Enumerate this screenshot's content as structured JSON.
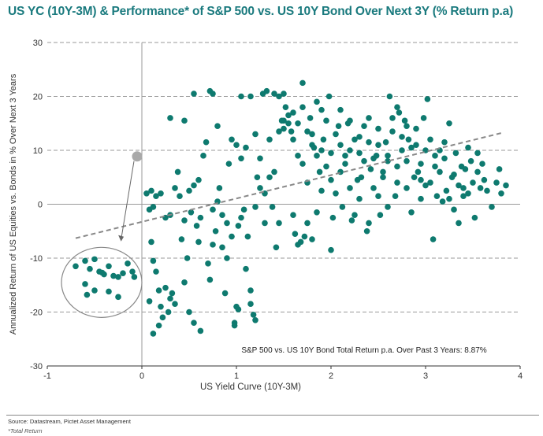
{
  "title": "US YC (10Y-3M) & Performance* of S&P 500 vs. US 10Y Bond Over Next 3Y (% Return p.a)",
  "source": "Source: Datastream, Pictet Asset Management",
  "footnote": "*Total Return",
  "colors": {
    "title": "#1a7a7e",
    "points": "#0e7a6f",
    "grid": "#9a9a9a",
    "highlight": "#a9a9a9",
    "trend": "#888888"
  },
  "chart_data": {
    "type": "scatter",
    "title": "US YC (10Y-3M) & Performance* of S&P 500 vs. US 10Y Bond Over Next 3Y (% Return p.a)",
    "xlabel": "US Yield Curve (10Y-3M)",
    "ylabel": "Annualized Return of US Equities vs. Bonds in % Over Next 3 Years",
    "xlim": [
      -1,
      4
    ],
    "ylim": [
      -30,
      30
    ],
    "xticks": [
      -1,
      0,
      1,
      2,
      3,
      4
    ],
    "yticks": [
      -30,
      -20,
      -10,
      0,
      10,
      20,
      30
    ],
    "grid": "horizontal dashed",
    "annotation": "S&P 500 vs. US 10Y Bond Total Return p.a. Over Past 3 Years: 8.87%",
    "highlight_point": {
      "x": -0.05,
      "y": 8.87
    },
    "trendline": {
      "x": [
        -0.7,
        3.8
      ],
      "y": [
        -6.3,
        13.2
      ]
    },
    "circled_region": {
      "x": [
        -0.85,
        0.0
      ],
      "y": [
        -21,
        -8
      ]
    },
    "series": [
      {
        "name": "Observations",
        "points": [
          [
            -0.7,
            -11.5
          ],
          [
            -0.6,
            -10.5
          ],
          [
            -0.55,
            -12.0
          ],
          [
            -0.6,
            -14.8
          ],
          [
            -0.5,
            -10.2
          ],
          [
            -0.45,
            -12.5
          ],
          [
            -0.4,
            -13.0
          ],
          [
            -0.35,
            -11.5
          ],
          [
            -0.3,
            -13.3
          ],
          [
            -0.25,
            -13.5
          ],
          [
            -0.2,
            -12.8
          ],
          [
            -0.15,
            -11.0
          ],
          [
            -0.1,
            -12.5
          ],
          [
            -0.08,
            -13.5
          ],
          [
            -0.5,
            -16.0
          ],
          [
            -0.35,
            -16.2
          ],
          [
            -0.25,
            -17.2
          ],
          [
            -0.58,
            -16.8
          ],
          [
            -0.42,
            -12.7
          ],
          [
            0.05,
            2.0
          ],
          [
            0.1,
            2.5
          ],
          [
            0.12,
            -0.5
          ],
          [
            0.15,
            1.5
          ],
          [
            0.2,
            2.0
          ],
          [
            0.25,
            -2.5
          ],
          [
            0.08,
            -1.0
          ],
          [
            0.1,
            -7.0
          ],
          [
            0.12,
            -10.5
          ],
          [
            0.15,
            -12.5
          ],
          [
            0.18,
            -16.0
          ],
          [
            0.2,
            -19.0
          ],
          [
            0.22,
            -21.0
          ],
          [
            0.25,
            -15.5
          ],
          [
            0.28,
            -20.0
          ],
          [
            0.3,
            -17.5
          ],
          [
            0.32,
            -16.5
          ],
          [
            0.35,
            -18.5
          ],
          [
            0.08,
            -18.0
          ],
          [
            0.12,
            -24.0
          ],
          [
            0.18,
            -22.5
          ],
          [
            0.3,
            -2.0
          ],
          [
            0.35,
            3.0
          ],
          [
            0.3,
            16.0
          ],
          [
            0.38,
            6.0
          ],
          [
            0.4,
            1.5
          ],
          [
            0.42,
            -6.5
          ],
          [
            0.45,
            -3.0
          ],
          [
            0.5,
            2.5
          ],
          [
            0.52,
            -1.5
          ],
          [
            0.55,
            3.5
          ],
          [
            0.48,
            -10.0
          ],
          [
            0.45,
            15.5
          ],
          [
            0.5,
            -20.0
          ],
          [
            0.55,
            -22.0
          ],
          [
            0.45,
            -14.5
          ],
          [
            0.58,
            -4.0
          ],
          [
            0.6,
            -7.0
          ],
          [
            0.62,
            -2.5
          ],
          [
            0.6,
            4.5
          ],
          [
            0.65,
            9.0
          ],
          [
            0.68,
            11.5
          ],
          [
            0.7,
            -11.0
          ],
          [
            0.72,
            -14.0
          ],
          [
            0.75,
            -7.5
          ],
          [
            0.55,
            20.5
          ],
          [
            0.62,
            -23.5
          ],
          [
            0.72,
            21.0
          ],
          [
            0.75,
            20.5
          ],
          [
            0.78,
            -5.0
          ],
          [
            0.8,
            0.5
          ],
          [
            0.82,
            3.0
          ],
          [
            0.85,
            -8.0
          ],
          [
            0.88,
            -16.5
          ],
          [
            0.9,
            -10.0
          ],
          [
            0.75,
            -1.0
          ],
          [
            0.8,
            14.5
          ],
          [
            0.85,
            -2.0
          ],
          [
            0.9,
            -3.5
          ],
          [
            0.92,
            7.5
          ],
          [
            0.95,
            -6.0
          ],
          [
            0.98,
            -22.5
          ],
          [
            1.0,
            -19.0
          ],
          [
            1.02,
            -19.5
          ],
          [
            0.98,
            -22.0
          ],
          [
            1.0,
            11.0
          ],
          [
            1.02,
            -4.0
          ],
          [
            1.05,
            -2.5
          ],
          [
            1.05,
            20.0
          ],
          [
            1.08,
            -1.0
          ],
          [
            1.1,
            10.5
          ],
          [
            1.12,
            -6.0
          ],
          [
            1.15,
            -18.5
          ],
          [
            1.18,
            -20.5
          ],
          [
            1.2,
            -21.5
          ],
          [
            1.15,
            -16.0
          ],
          [
            1.1,
            -12.0
          ],
          [
            0.95,
            12.0
          ],
          [
            1.05,
            8.5
          ],
          [
            1.15,
            20.0
          ],
          [
            1.2,
            -0.5
          ],
          [
            1.2,
            13.0
          ],
          [
            1.22,
            5.0
          ],
          [
            1.25,
            3.0
          ],
          [
            1.28,
            20.5
          ],
          [
            1.3,
            2.0
          ],
          [
            1.3,
            -3.5
          ],
          [
            1.32,
            21.0
          ],
          [
            1.35,
            5.0
          ],
          [
            1.38,
            -0.5
          ],
          [
            1.4,
            20.5
          ],
          [
            1.42,
            -8.0
          ],
          [
            1.45,
            -3.5
          ],
          [
            1.45,
            20.0
          ],
          [
            1.48,
            15.5
          ],
          [
            1.5,
            14.0
          ],
          [
            1.5,
            20.5
          ],
          [
            1.52,
            18.0
          ],
          [
            1.55,
            15.0
          ],
          [
            1.58,
            13.5
          ],
          [
            1.6,
            -2.0
          ],
          [
            1.62,
            -5.5
          ],
          [
            1.65,
            -7.5
          ],
          [
            1.68,
            -7.0
          ],
          [
            1.7,
            22.5
          ],
          [
            1.72,
            -6.0
          ],
          [
            1.75,
            -3.5
          ],
          [
            1.6,
            12.0
          ],
          [
            1.65,
            9.0
          ],
          [
            1.7,
            7.5
          ],
          [
            1.75,
            4.0
          ],
          [
            1.78,
            16.0
          ],
          [
            1.8,
            13.0
          ],
          [
            1.82,
            10.5
          ],
          [
            1.85,
            9.0
          ],
          [
            1.88,
            6.0
          ],
          [
            1.9,
            17.5
          ],
          [
            1.92,
            12.0
          ],
          [
            1.95,
            7.0
          ],
          [
            1.98,
            20.0
          ],
          [
            2.0,
            -8.5
          ],
          [
            2.02,
            -2.5
          ],
          [
            2.05,
            2.0
          ],
          [
            2.08,
            14.5
          ],
          [
            2.1,
            11.0
          ],
          [
            2.12,
            -0.5
          ],
          [
            2.15,
            7.5
          ],
          [
            2.18,
            15.0
          ],
          [
            2.2,
            10.0
          ],
          [
            2.22,
            -3.0
          ],
          [
            2.25,
            -2.0
          ],
          [
            2.28,
            4.5
          ],
          [
            2.3,
            12.5
          ],
          [
            2.32,
            5.0
          ],
          [
            2.35,
            8.0
          ],
          [
            2.38,
            -5.0
          ],
          [
            2.4,
            16.0
          ],
          [
            2.42,
            6.5
          ],
          [
            2.45,
            3.0
          ],
          [
            2.48,
            9.0
          ],
          [
            2.5,
            14.0
          ],
          [
            2.52,
            -2.0
          ],
          [
            2.55,
            6.0
          ],
          [
            2.58,
            11.5
          ],
          [
            2.6,
            9.0
          ],
          [
            2.62,
            20.0
          ],
          [
            2.65,
            13.5
          ],
          [
            2.68,
            1.5
          ],
          [
            2.7,
            7.0
          ],
          [
            2.72,
            17.0
          ],
          [
            2.75,
            10.0
          ],
          [
            2.78,
            15.5
          ],
          [
            2.8,
            8.0
          ],
          [
            2.82,
            12.0
          ],
          [
            2.85,
            -1.5
          ],
          [
            2.88,
            5.0
          ],
          [
            2.9,
            14.0
          ],
          [
            2.92,
            6.0
          ],
          [
            2.95,
            4.5
          ],
          [
            2.98,
            16.0
          ],
          [
            3.0,
            3.5
          ],
          [
            3.02,
            19.5
          ],
          [
            3.05,
            12.0
          ],
          [
            3.08,
            -6.5
          ],
          [
            3.1,
            9.0
          ],
          [
            3.12,
            1.5
          ],
          [
            3.15,
            6.0
          ],
          [
            3.18,
            0.5
          ],
          [
            3.2,
            8.5
          ],
          [
            3.22,
            2.5
          ],
          [
            3.25,
            15.0
          ],
          [
            3.28,
            5.0
          ],
          [
            3.3,
            -1.0
          ],
          [
            3.32,
            9.5
          ],
          [
            3.35,
            -3.5
          ],
          [
            3.38,
            7.0
          ],
          [
            3.4,
            3.0
          ],
          [
            3.42,
            6.5
          ],
          [
            3.45,
            2.0
          ],
          [
            3.48,
            8.0
          ],
          [
            3.5,
            4.0
          ],
          [
            3.52,
            -2.5
          ],
          [
            3.55,
            6.0
          ],
          [
            3.58,
            3.0
          ],
          [
            3.6,
            7.5
          ],
          [
            3.62,
            4.5
          ],
          [
            3.65,
            2.5
          ],
          [
            3.7,
            -0.5
          ],
          [
            3.75,
            4.0
          ],
          [
            3.78,
            6.5
          ],
          [
            3.8,
            2.0
          ],
          [
            3.85,
            3.5
          ],
          [
            3.55,
            9.5
          ],
          [
            3.45,
            10.5
          ],
          [
            3.4,
            1.5
          ],
          [
            3.35,
            3.5
          ],
          [
            3.3,
            5.5
          ],
          [
            3.25,
            1.0
          ],
          [
            3.2,
            11.5
          ],
          [
            3.15,
            10.0
          ],
          [
            3.1,
            7.0
          ],
          [
            3.05,
            4.0
          ],
          [
            3.0,
            10.0
          ],
          [
            2.95,
            7.5
          ],
          [
            2.9,
            11.0
          ],
          [
            2.85,
            10.5
          ],
          [
            2.8,
            14.5
          ],
          [
            2.75,
            12.5
          ],
          [
            2.7,
            18.0
          ],
          [
            2.65,
            16.0
          ],
          [
            2.6,
            8.0
          ],
          [
            2.55,
            5.0
          ],
          [
            2.5,
            11.0
          ],
          [
            2.45,
            8.5
          ],
          [
            2.4,
            11.5
          ],
          [
            2.35,
            14.5
          ],
          [
            2.3,
            9.5
          ],
          [
            2.25,
            12.0
          ],
          [
            2.2,
            15.5
          ],
          [
            2.15,
            9.0
          ],
          [
            2.1,
            17.5
          ],
          [
            2.05,
            13.0
          ],
          [
            2.0,
            9.5
          ],
          [
            1.95,
            15.5
          ],
          [
            1.9,
            10.0
          ],
          [
            1.85,
            19.0
          ],
          [
            1.8,
            11.0
          ],
          [
            1.75,
            13.5
          ],
          [
            1.7,
            18.0
          ],
          [
            1.65,
            15.0
          ],
          [
            1.6,
            17.0
          ],
          [
            1.55,
            16.5
          ],
          [
            1.5,
            15.5
          ],
          [
            1.45,
            13.5
          ],
          [
            1.4,
            6.0
          ],
          [
            1.35,
            12.0
          ],
          [
            1.25,
            8.5
          ],
          [
            2.6,
            -0.5
          ],
          [
            2.5,
            1.5
          ],
          [
            2.4,
            -3.5
          ],
          [
            2.3,
            1.0
          ],
          [
            2.2,
            3.0
          ],
          [
            2.1,
            6.0
          ],
          [
            2.0,
            4.5
          ],
          [
            1.9,
            2.5
          ],
          [
            1.85,
            -1.5
          ],
          [
            1.8,
            -6.5
          ],
          [
            2.7,
            4.0
          ],
          [
            2.8,
            3.0
          ],
          [
            2.95,
            1.0
          ]
        ]
      }
    ]
  }
}
